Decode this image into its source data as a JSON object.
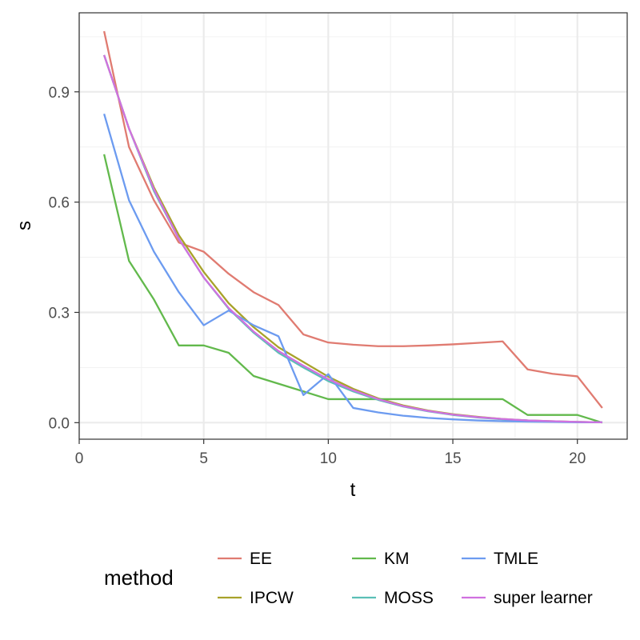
{
  "chart_data": {
    "type": "line",
    "xlabel": "t",
    "ylabel": "s",
    "xlim": [
      0,
      22
    ],
    "ylim": [
      -0.045,
      1.115
    ],
    "x_ticks": [
      0,
      5,
      10,
      15,
      20
    ],
    "x_tick_labels": [
      "0",
      "5",
      "10",
      "15",
      "20"
    ],
    "y_ticks": [
      0.0,
      0.3,
      0.6,
      0.9
    ],
    "y_tick_labels": [
      "0.0",
      "0.3",
      "0.6",
      "0.9"
    ],
    "grid": true,
    "legend": {
      "title": "method",
      "position": "bottom"
    },
    "x": [
      1,
      2,
      3,
      4,
      5,
      6,
      7,
      8,
      9,
      10,
      11,
      12,
      13,
      14,
      15,
      16,
      17,
      18,
      19,
      20,
      21
    ],
    "series": [
      {
        "name": "EE",
        "color": "#E07B71",
        "values": [
          1.065,
          0.75,
          0.605,
          0.49,
          0.465,
          0.405,
          0.355,
          0.32,
          0.24,
          0.218,
          0.212,
          0.208,
          0.208,
          0.21,
          0.213,
          0.217,
          0.221,
          0.145,
          0.133,
          0.126,
          0.04
        ]
      },
      {
        "name": "IPCW",
        "color": "#A8A22A",
        "values": [
          1.0,
          0.8,
          0.64,
          0.51,
          0.41,
          0.325,
          0.26,
          0.205,
          0.165,
          0.125,
          0.092,
          0.066,
          0.047,
          0.033,
          0.023,
          0.016,
          0.01,
          0.006,
          0.004,
          0.002,
          0.001
        ]
      },
      {
        "name": "KM",
        "color": "#62B94C",
        "values": [
          0.73,
          0.44,
          0.335,
          0.21,
          0.21,
          0.19,
          0.127,
          0.106,
          0.085,
          0.064,
          0.064,
          0.064,
          0.064,
          0.064,
          0.064,
          0.064,
          0.064,
          0.021,
          0.021,
          0.021,
          0.0
        ]
      },
      {
        "name": "MOSS",
        "color": "#5BBFB6",
        "values": [
          1.0,
          0.8,
          0.63,
          0.5,
          0.395,
          0.31,
          0.245,
          0.19,
          0.15,
          0.113,
          0.085,
          0.062,
          0.044,
          0.031,
          0.021,
          0.014,
          0.009,
          0.006,
          0.003,
          0.002,
          0.001
        ]
      },
      {
        "name": "TMLE",
        "color": "#6C9BF0",
        "values": [
          0.84,
          0.605,
          0.465,
          0.355,
          0.265,
          0.305,
          0.265,
          0.235,
          0.075,
          0.132,
          0.04,
          0.028,
          0.019,
          0.013,
          0.009,
          0.006,
          0.004,
          0.003,
          0.002,
          0.001,
          0.001
        ]
      },
      {
        "name": "super learner",
        "color": "#D071E0",
        "values": [
          1.0,
          0.8,
          0.635,
          0.5,
          0.395,
          0.312,
          0.248,
          0.195,
          0.155,
          0.118,
          0.088,
          0.064,
          0.045,
          0.032,
          0.022,
          0.015,
          0.01,
          0.006,
          0.004,
          0.002,
          0.001
        ]
      }
    ]
  }
}
